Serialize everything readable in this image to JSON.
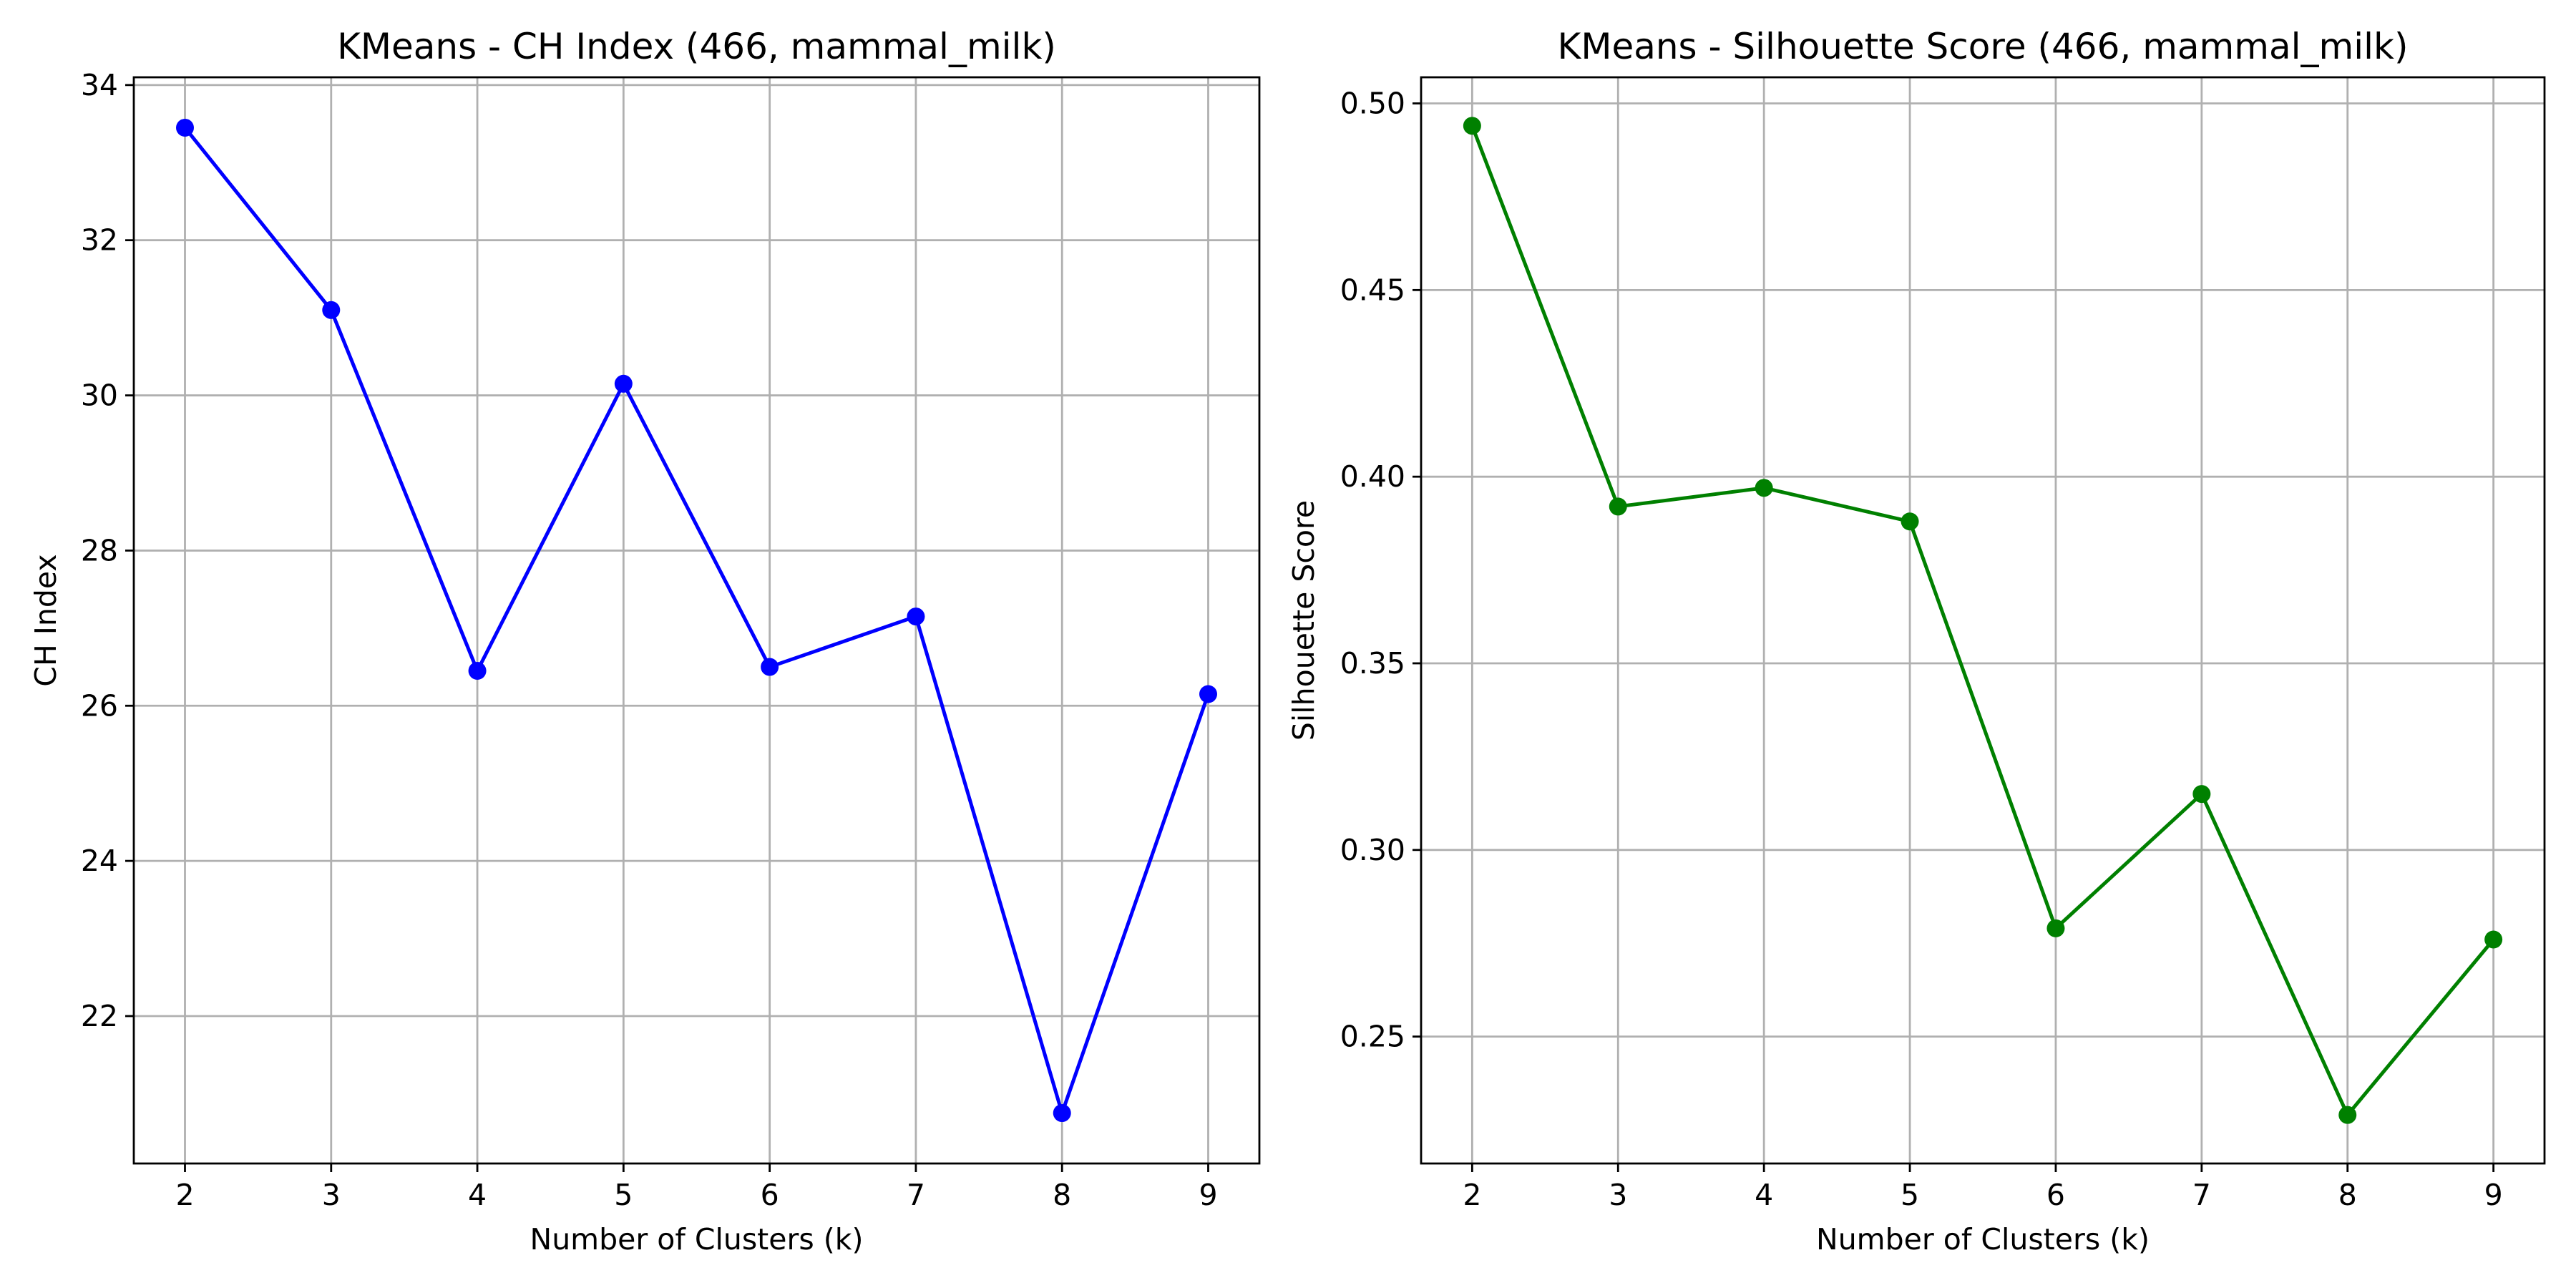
{
  "chart_data": [
    {
      "type": "line",
      "title": "KMeans - CH Index (466, mammal_milk)",
      "xlabel": "Number of Clusters (k)",
      "ylabel": "CH Index",
      "xlim": [
        1.65,
        9.35
      ],
      "ylim": [
        20.1,
        34.1
      ],
      "x_ticks": [
        2,
        3,
        4,
        5,
        6,
        7,
        8,
        9
      ],
      "y_ticks": [
        22,
        24,
        26,
        28,
        30,
        32,
        34
      ],
      "y_tick_labels": [
        "22",
        "24",
        "26",
        "28",
        "30",
        "32",
        "34"
      ],
      "grid": true,
      "color": "#0000ff",
      "marker": "circle",
      "x": [
        2,
        3,
        4,
        5,
        6,
        7,
        8,
        9
      ],
      "y": [
        33.45,
        31.1,
        26.45,
        30.15,
        26.5,
        27.15,
        20.75,
        26.15
      ]
    },
    {
      "type": "line",
      "title": "KMeans - Silhouette Score (466, mammal_milk)",
      "xlabel": "Number of Clusters (k)",
      "ylabel": "Silhouette Score",
      "xlim": [
        1.65,
        9.35
      ],
      "ylim": [
        0.216,
        0.507
      ],
      "x_ticks": [
        2,
        3,
        4,
        5,
        6,
        7,
        8,
        9
      ],
      "y_ticks": [
        0.25,
        0.3,
        0.35,
        0.4,
        0.45,
        0.5
      ],
      "y_tick_labels": [
        "0.25",
        "0.30",
        "0.35",
        "0.40",
        "0.45",
        "0.50"
      ],
      "grid": true,
      "color": "#008000",
      "marker": "circle",
      "x": [
        2,
        3,
        4,
        5,
        6,
        7,
        8,
        9
      ],
      "y": [
        0.494,
        0.392,
        0.397,
        0.388,
        0.279,
        0.315,
        0.229,
        0.276
      ]
    }
  ]
}
